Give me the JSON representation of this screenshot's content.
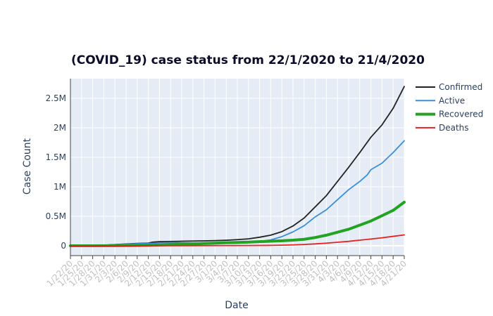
{
  "chart_data": {
    "type": "line",
    "title": "(COVID_19) case status from 22/1/2020 to 21/4/2020",
    "xlabel": "Date",
    "ylabel": "Case Count",
    "ylim": [
      0,
      2850000
    ],
    "xlim": [
      "2020-01-22",
      "2020-04-21"
    ],
    "grid": true,
    "legend_position": "right",
    "plot_background": "#e5ecf6",
    "y_ticks": [
      {
        "value": 0,
        "label": "0"
      },
      {
        "value": 500000,
        "label": "0.5M"
      },
      {
        "value": 1000000,
        "label": "1M"
      },
      {
        "value": 1500000,
        "label": "1.5M"
      },
      {
        "value": 2000000,
        "label": "2M"
      },
      {
        "value": 2500000,
        "label": "2.5M"
      }
    ],
    "x_ticks": [
      {
        "date": "2020-01-22",
        "label": "1/22/20"
      },
      {
        "date": "2020-01-25",
        "label": "1/25/20"
      },
      {
        "date": "2020-01-28",
        "label": "1/28/20"
      },
      {
        "date": "2020-01-31",
        "label": "1/31/20"
      },
      {
        "date": "2020-02-03",
        "label": "2/3/20"
      },
      {
        "date": "2020-02-06",
        "label": "2/6/20"
      },
      {
        "date": "2020-02-09",
        "label": "2/9/20"
      },
      {
        "date": "2020-02-12",
        "label": "2/12/20"
      },
      {
        "date": "2020-02-15",
        "label": "2/15/20"
      },
      {
        "date": "2020-02-18",
        "label": "2/18/20"
      },
      {
        "date": "2020-02-21",
        "label": "2/21/20"
      },
      {
        "date": "2020-02-24",
        "label": "2/24/20"
      },
      {
        "date": "2020-02-27",
        "label": "2/27/20"
      },
      {
        "date": "2020-03-01",
        "label": "3/1/20"
      },
      {
        "date": "2020-03-04",
        "label": "3/4/20"
      },
      {
        "date": "2020-03-07",
        "label": "3/7/20"
      },
      {
        "date": "2020-03-10",
        "label": "3/10/20"
      },
      {
        "date": "2020-03-13",
        "label": "3/13/20"
      },
      {
        "date": "2020-03-16",
        "label": "3/16/20"
      },
      {
        "date": "2020-03-19",
        "label": "3/19/20"
      },
      {
        "date": "2020-03-22",
        "label": "3/22/20"
      },
      {
        "date": "2020-03-25",
        "label": "3/25/20"
      },
      {
        "date": "2020-03-28",
        "label": "3/28/20"
      },
      {
        "date": "2020-03-31",
        "label": "3/31/20"
      },
      {
        "date": "2020-04-03",
        "label": "4/3/20"
      },
      {
        "date": "2020-04-06",
        "label": "4/6/20"
      },
      {
        "date": "2020-04-09",
        "label": "4/9/20"
      },
      {
        "date": "2020-04-12",
        "label": "4/12/20"
      },
      {
        "date": "2020-04-15",
        "label": "4/15/20"
      },
      {
        "date": "2020-04-18",
        "label": "4/18/20"
      },
      {
        "date": "2020-04-21",
        "label": "4/21/20"
      }
    ],
    "series": [
      {
        "name": "Confirmed",
        "color": "#222222",
        "points": [
          [
            "2020-01-22",
            500
          ],
          [
            "2020-01-25",
            2000
          ],
          [
            "2020-01-28",
            5500
          ],
          [
            "2020-01-31",
            9800
          ],
          [
            "2020-02-03",
            20000
          ],
          [
            "2020-02-06",
            31000
          ],
          [
            "2020-02-09",
            40000
          ],
          [
            "2020-02-12",
            45000
          ],
          [
            "2020-02-13",
            60000
          ],
          [
            "2020-02-15",
            69000
          ],
          [
            "2020-02-18",
            73000
          ],
          [
            "2020-02-21",
            77000
          ],
          [
            "2020-02-24",
            80000
          ],
          [
            "2020-02-27",
            83000
          ],
          [
            "2020-03-01",
            88000
          ],
          [
            "2020-03-04",
            94000
          ],
          [
            "2020-03-07",
            104000
          ],
          [
            "2020-03-10",
            118000
          ],
          [
            "2020-03-13",
            145000
          ],
          [
            "2020-03-16",
            180000
          ],
          [
            "2020-03-19",
            240000
          ],
          [
            "2020-03-22",
            335000
          ],
          [
            "2020-03-25",
            470000
          ],
          [
            "2020-03-28",
            660000
          ],
          [
            "2020-03-31",
            850000
          ],
          [
            "2020-04-03",
            1090000
          ],
          [
            "2020-04-06",
            1330000
          ],
          [
            "2020-04-09",
            1580000
          ],
          [
            "2020-04-12",
            1840000
          ],
          [
            "2020-04-15",
            2050000
          ],
          [
            "2020-04-18",
            2330000
          ],
          [
            "2020-04-21",
            2700000
          ]
        ]
      },
      {
        "name": "Active",
        "color": "#3a8fd8",
        "points": [
          [
            "2020-01-22",
            500
          ],
          [
            "2020-01-25",
            1800
          ],
          [
            "2020-01-28",
            5000
          ],
          [
            "2020-01-31",
            9000
          ],
          [
            "2020-02-03",
            18500
          ],
          [
            "2020-02-06",
            28000
          ],
          [
            "2020-02-09",
            35000
          ],
          [
            "2020-02-12",
            39000
          ],
          [
            "2020-02-15",
            49000
          ],
          [
            "2020-02-18",
            53000
          ],
          [
            "2020-02-21",
            51000
          ],
          [
            "2020-02-24",
            47000
          ],
          [
            "2020-02-27",
            43000
          ],
          [
            "2020-03-01",
            40000
          ],
          [
            "2020-03-04",
            40000
          ],
          [
            "2020-03-07",
            44000
          ],
          [
            "2020-03-10",
            52000
          ],
          [
            "2020-03-13",
            72000
          ],
          [
            "2020-03-16",
            100000
          ],
          [
            "2020-03-19",
            155000
          ],
          [
            "2020-03-22",
            235000
          ],
          [
            "2020-03-25",
            340000
          ],
          [
            "2020-03-28",
            490000
          ],
          [
            "2020-03-31",
            610000
          ],
          [
            "2020-04-03",
            780000
          ],
          [
            "2020-04-06",
            950000
          ],
          [
            "2020-04-09",
            1090000
          ],
          [
            "2020-04-11",
            1200000
          ],
          [
            "2020-04-12",
            1290000
          ],
          [
            "2020-04-15",
            1400000
          ],
          [
            "2020-04-18",
            1580000
          ],
          [
            "2020-04-21",
            1780000
          ]
        ]
      },
      {
        "name": "Recovered",
        "color": "#22a322",
        "points": [
          [
            "2020-01-22",
            0
          ],
          [
            "2020-01-28",
            200
          ],
          [
            "2020-02-03",
            1000
          ],
          [
            "2020-02-09",
            4000
          ],
          [
            "2020-02-12",
            8000
          ],
          [
            "2020-02-15",
            14000
          ],
          [
            "2020-02-18",
            19000
          ],
          [
            "2020-02-21",
            25000
          ],
          [
            "2020-02-24",
            31000
          ],
          [
            "2020-02-27",
            38000
          ],
          [
            "2020-03-01",
            45000
          ],
          [
            "2020-03-04",
            52000
          ],
          [
            "2020-03-07",
            57000
          ],
          [
            "2020-03-10",
            63000
          ],
          [
            "2020-03-13",
            70000
          ],
          [
            "2020-03-16",
            77000
          ],
          [
            "2020-03-19",
            85000
          ],
          [
            "2020-03-22",
            95000
          ],
          [
            "2020-03-25",
            110000
          ],
          [
            "2020-03-28",
            140000
          ],
          [
            "2020-03-31",
            180000
          ],
          [
            "2020-04-03",
            230000
          ],
          [
            "2020-04-06",
            280000
          ],
          [
            "2020-04-09",
            350000
          ],
          [
            "2020-04-12",
            420000
          ],
          [
            "2020-04-15",
            510000
          ],
          [
            "2020-04-18",
            600000
          ],
          [
            "2020-04-21",
            740000
          ]
        ]
      },
      {
        "name": "Deaths",
        "color": "#e8211f",
        "points": [
          [
            "2020-01-22",
            0
          ],
          [
            "2020-02-09",
            500
          ],
          [
            "2020-02-21",
            2000
          ],
          [
            "2020-03-01",
            3000
          ],
          [
            "2020-03-10",
            4500
          ],
          [
            "2020-03-16",
            7000
          ],
          [
            "2020-03-19",
            10000
          ],
          [
            "2020-03-22",
            15000
          ],
          [
            "2020-03-25",
            22000
          ],
          [
            "2020-03-28",
            32000
          ],
          [
            "2020-03-31",
            45000
          ],
          [
            "2020-04-03",
            60000
          ],
          [
            "2020-04-06",
            75000
          ],
          [
            "2020-04-09",
            95000
          ],
          [
            "2020-04-12",
            115000
          ],
          [
            "2020-04-15",
            135000
          ],
          [
            "2020-04-18",
            160000
          ],
          [
            "2020-04-21",
            185000
          ]
        ]
      }
    ]
  }
}
